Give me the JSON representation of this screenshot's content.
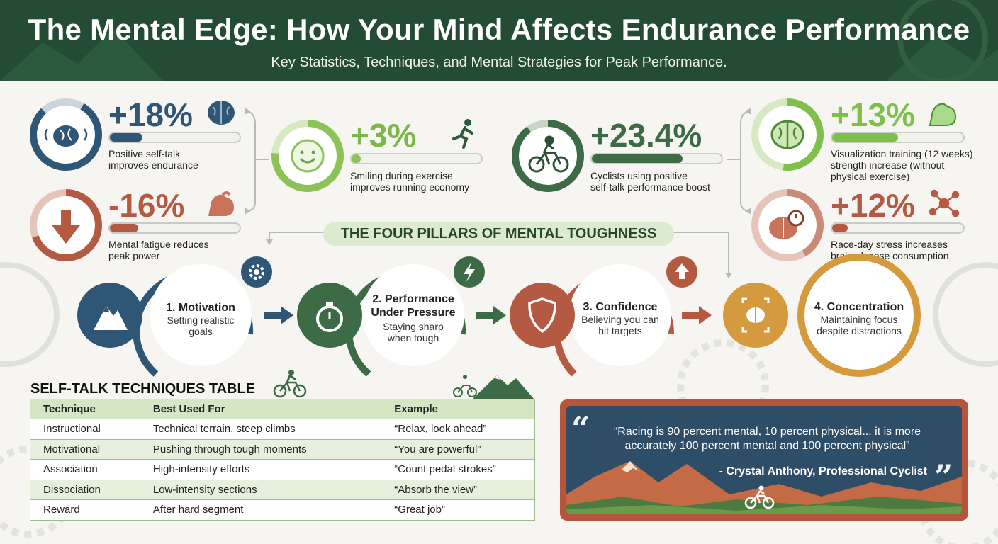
{
  "header": {
    "title": "The Mental Edge: How Your Mind Affects Endurance Performance",
    "subtitle": "Key Statistics, Techniques, and Mental Strategies for Peak Performance."
  },
  "stats": {
    "self_talk": {
      "value": "+18%",
      "desc": [
        "Positive self-talk",
        "improves endurance"
      ],
      "fill": 0.25,
      "color": "#2f5674",
      "icon": "brain-icon"
    },
    "fatigue": {
      "value": "-16%",
      "desc": [
        "Mental fatigue reduces",
        "peak power"
      ],
      "fill": 0.22,
      "color": "#b55a42",
      "icon": "flexed-arm-icon"
    },
    "smiling": {
      "value": "+3%",
      "desc": [
        "Smiling during exercise",
        "improves running economy"
      ],
      "fill": 0.07,
      "color": "#8cc257",
      "icon": "running-person-icon"
    },
    "cyclists": {
      "value": "+23.4%",
      "desc": [
        "Cyclists using positive",
        "self-talk performance boost"
      ],
      "fill": 0.7,
      "color": "#3c6b45",
      "icon": "cyclist-icon"
    },
    "visualization": {
      "value": "+13%",
      "desc": [
        "Visualization training (12 weeks)",
        "strength increase (without",
        "physical exercise)"
      ],
      "fill": 0.5,
      "color": "#7ec04a",
      "icon": "flexed-arm-icon"
    },
    "race_day": {
      "value": "+12%",
      "desc": [
        "Race-day stress increases",
        "brain glucose consumption"
      ],
      "fill": 0.12,
      "color": "#b55a42",
      "icon": "molecule-icon"
    }
  },
  "pillars": {
    "heading": "THE FOUR PILLARS OF MENTAL TOUGHNESS",
    "items": [
      {
        "title": [
          "1. Motivation"
        ],
        "sub": [
          "Setting realistic",
          "goals"
        ],
        "color": "#2f5674",
        "icon": "mountain-icon",
        "badge": "gear-icon"
      },
      {
        "title": [
          "2. Performance",
          "Under Pressure"
        ],
        "sub": [
          "Staying sharp",
          "when tough"
        ],
        "color": "#3c6b45",
        "icon": "stopwatch-icon",
        "badge": "lightning-icon"
      },
      {
        "title": [
          "3. Confidence"
        ],
        "sub": [
          "Believing you can",
          "hit targets"
        ],
        "color": "#b55a42",
        "icon": "shield-icon",
        "badge": "arrow-up-icon"
      },
      {
        "title": [
          "4. Concentration"
        ],
        "sub": [
          "Maintaining focus",
          "despite distractions"
        ],
        "color": "#d69a3e",
        "icon": "focus-brain-icon",
        "badge": ""
      }
    ]
  },
  "table": {
    "title": "SELF-TALK TECHNIQUES TABLE",
    "headers": [
      "Technique",
      "Best Used For",
      "Example"
    ],
    "rows": [
      [
        "Instructional",
        "Technical terrain, steep climbs",
        "“Relax, look ahead”"
      ],
      [
        "Motivational",
        "Pushing through tough moments",
        "“You are powerful”"
      ],
      [
        "Association",
        "High-intensity efforts",
        "“Count pedal strokes”"
      ],
      [
        "Dissociation",
        "Low-intensity sections",
        "“Absorb the view”"
      ],
      [
        "Reward",
        "After hard segment",
        "“Great job”"
      ]
    ]
  },
  "quote": {
    "text": [
      "“Racing is 90 percent mental, 10 percent physical... it is more",
      "accurately 100 percent mental and 100 percent physical”"
    ],
    "author": "- Crystal Anthony, Professional Cyclist"
  }
}
